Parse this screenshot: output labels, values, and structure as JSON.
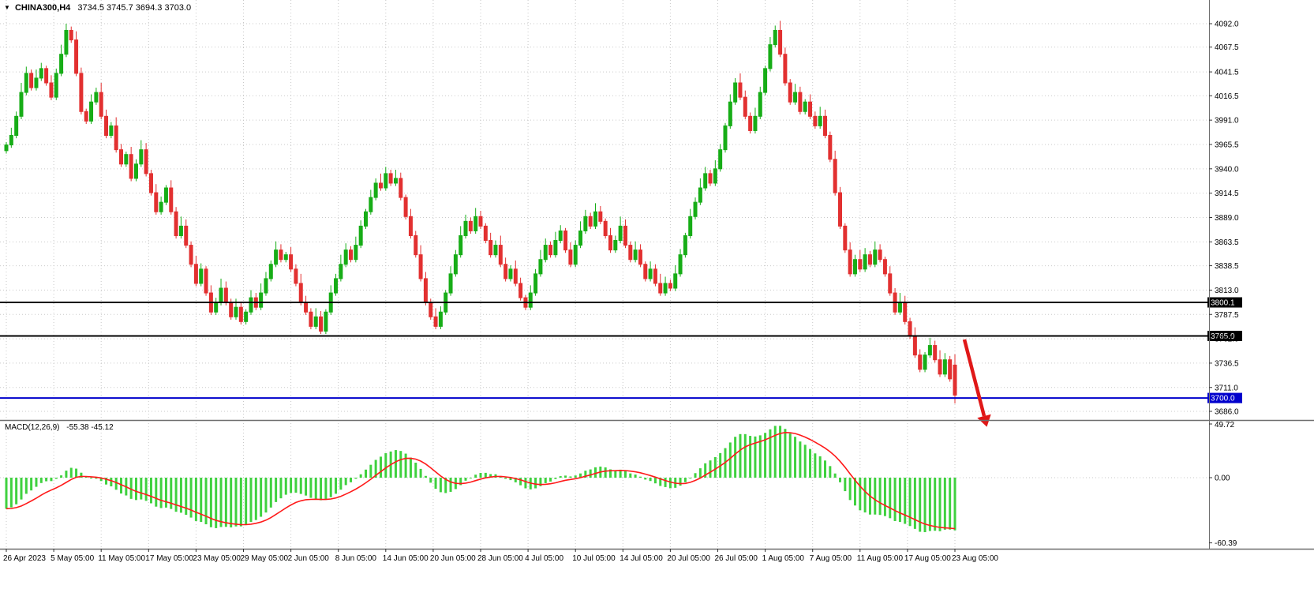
{
  "header": {
    "dropdown_icon": "▼",
    "symbol_label": "CHINA300,H4",
    "ohlc_label": "3734.5 3745.7 3694.3 3703.0"
  },
  "chart_data": {
    "type": "candlestick",
    "title": "CHINA300,H4",
    "symbol": "CHINA300",
    "timeframe": "H4",
    "last_bar_ohlc_text": {
      "open": "3734.5",
      "high": "3745.7",
      "low": "3694.3",
      "close": "3703.0"
    },
    "ylim": [
      3686.0,
      4092.0
    ],
    "price_axis_ticks": [
      "4092.0",
      "4067.5",
      "4041.5",
      "4016.5",
      "3991.0",
      "3965.5",
      "3940.0",
      "3914.5",
      "3889.0",
      "3863.5",
      "3838.5",
      "3813.0",
      "3787.5",
      "3762.0",
      "3736.5",
      "3711.0",
      "3686.0"
    ],
    "time_axis_ticks": [
      "26 Apr 2023",
      "5 May 05:00",
      "11 May 05:00",
      "17 May 05:00",
      "23 May 05:00",
      "29 May 05:00",
      "2 Jun 05:00",
      "8 Jun 05:00",
      "14 Jun 05:00",
      "20 Jun 05:00",
      "28 Jun 05:00",
      "4 Jul 05:00",
      "10 Jul 05:00",
      "14 Jul 05:00",
      "20 Jul 05:00",
      "26 Jul 05:00",
      "1 Aug 05:00",
      "7 Aug 05:00",
      "11 Aug 05:00",
      "17 Aug 05:00",
      "23 Aug 05:00"
    ],
    "closes": [
      3965,
      3975,
      3995,
      4020,
      4040,
      4025,
      4035,
      4045,
      4030,
      4015,
      4040,
      4060,
      4085,
      4075,
      4040,
      4000,
      3990,
      4010,
      4020,
      3995,
      3975,
      3985,
      3960,
      3945,
      3955,
      3930,
      3945,
      3960,
      3935,
      3915,
      3895,
      3905,
      3920,
      3895,
      3870,
      3880,
      3860,
      3840,
      3820,
      3835,
      3810,
      3790,
      3800,
      3815,
      3800,
      3785,
      3795,
      3780,
      3790,
      3805,
      3795,
      3810,
      3825,
      3840,
      3855,
      3845,
      3850,
      3835,
      3820,
      3800,
      3790,
      3775,
      3785,
      3770,
      3790,
      3810,
      3825,
      3840,
      3855,
      3845,
      3860,
      3880,
      3895,
      3910,
      3925,
      3920,
      3935,
      3925,
      3930,
      3910,
      3890,
      3870,
      3850,
      3825,
      3800,
      3785,
      3775,
      3790,
      3810,
      3830,
      3850,
      3870,
      3885,
      3875,
      3890,
      3880,
      3865,
      3850,
      3860,
      3840,
      3825,
      3835,
      3820,
      3805,
      3795,
      3810,
      3830,
      3845,
      3860,
      3850,
      3865,
      3875,
      3855,
      3840,
      3860,
      3875,
      3890,
      3880,
      3895,
      3885,
      3870,
      3855,
      3865,
      3880,
      3860,
      3845,
      3855,
      3840,
      3825,
      3835,
      3820,
      3810,
      3820,
      3815,
      3830,
      3850,
      3870,
      3890,
      3905,
      3920,
      3935,
      3925,
      3940,
      3960,
      3985,
      4010,
      4030,
      4015,
      3995,
      3980,
      3995,
      4020,
      4045,
      4070,
      4085,
      4060,
      4030,
      4010,
      4020,
      4000,
      4010,
      3995,
      3985,
      3995,
      3975,
      3950,
      3915,
      3880,
      3855,
      3830,
      3845,
      3835,
      3850,
      3840,
      3855,
      3845,
      3830,
      3810,
      3790,
      3800,
      3780,
      3765,
      3745,
      3730,
      3745,
      3755,
      3740,
      3725,
      3740,
      3720,
      3703
    ],
    "last_candle_ohlc": [
      3734.5,
      3745.7,
      3694.3,
      3703.0
    ],
    "hlines": [
      {
        "price": 3800.1,
        "label": "3800.1",
        "color": "#000000"
      },
      {
        "price": 3765.0,
        "label": "3765.0",
        "color": "#000000"
      },
      {
        "price": 3700.0,
        "label": "3700.0",
        "color": "#0000cc"
      }
    ],
    "arrow_annotation": {
      "description": "red down-right arrow after breakdown",
      "color": "#e01818"
    },
    "macd": {
      "label": "MACD(12,26,9)",
      "values_text": "-55.38 -45.12",
      "macd_value": -55.38,
      "signal_value": -45.12,
      "axis_ticks": [
        "49.72",
        "0.00",
        "-60.39"
      ],
      "ylim": [
        -60.39,
        49.72
      ]
    },
    "colors": {
      "up": "#17ad17",
      "down": "#e23030",
      "hist": "#3fd13f",
      "signal": "#ff1a1a",
      "grid": "#c9c9c9",
      "axis_text": "#000000",
      "separator": "#6e6e6e",
      "tag_text": "#ffffff",
      "background": "#ffffff"
    },
    "grid": "dotted",
    "legend": "none"
  }
}
